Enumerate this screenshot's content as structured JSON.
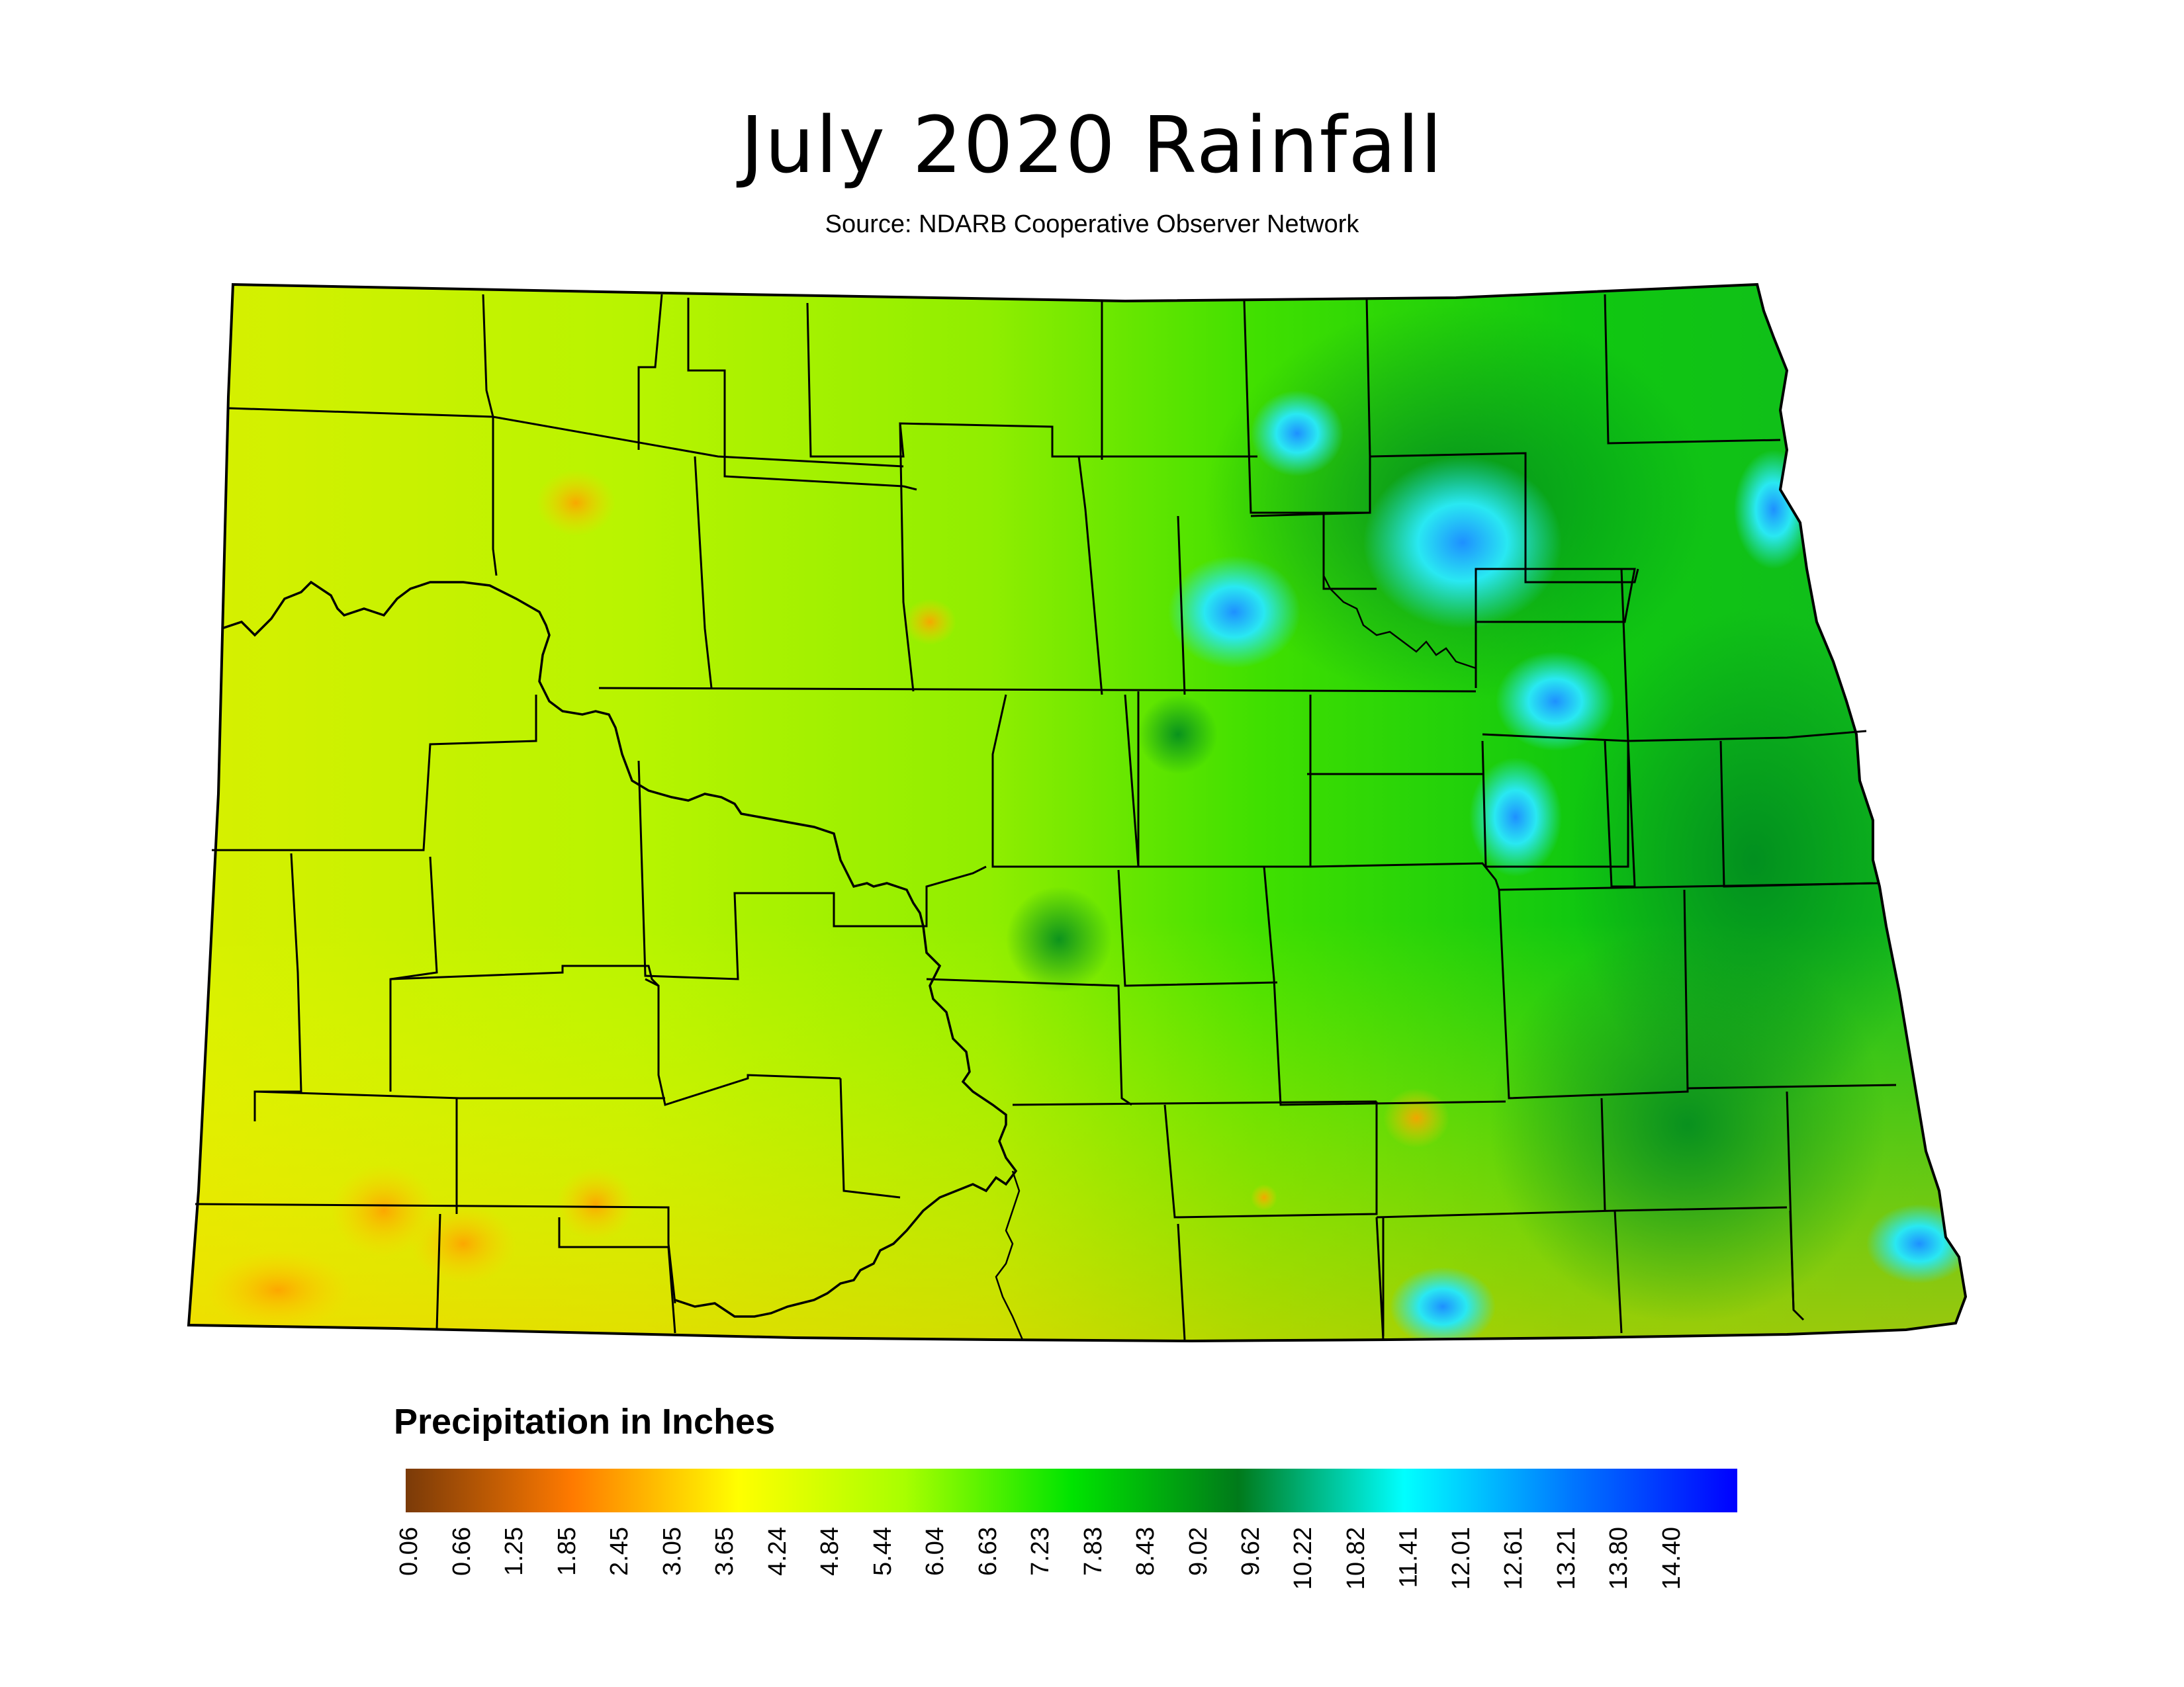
{
  "title": "July 2020 Rainfall",
  "subtitle": "Source: NDARB Cooperative Observer Network",
  "legend": {
    "title": "Precipitation in Inches",
    "ticks": [
      "0.06",
      "0.66",
      "1.25",
      "1.85",
      "2.45",
      "3.05",
      "3.65",
      "4.24",
      "4.84",
      "5.44",
      "6.04",
      "6.63",
      "7.23",
      "7.83",
      "8.43",
      "9.02",
      "9.62",
      "10.22",
      "10.82",
      "11.41",
      "12.01",
      "12.61",
      "13.21",
      "13.80",
      "14.40"
    ],
    "colors": [
      "#7a3a08",
      "#ff7a00",
      "#ffff00",
      "#a8ff00",
      "#00e400",
      "#007a1a",
      "#00ffff",
      "#0078ff",
      "#0000ff"
    ]
  },
  "map": {
    "fill_base": "#86ec00",
    "county_line_color": "#000000",
    "wet_spots_color": "#29e8f2",
    "dry_spots_color": "#ffb000"
  }
}
